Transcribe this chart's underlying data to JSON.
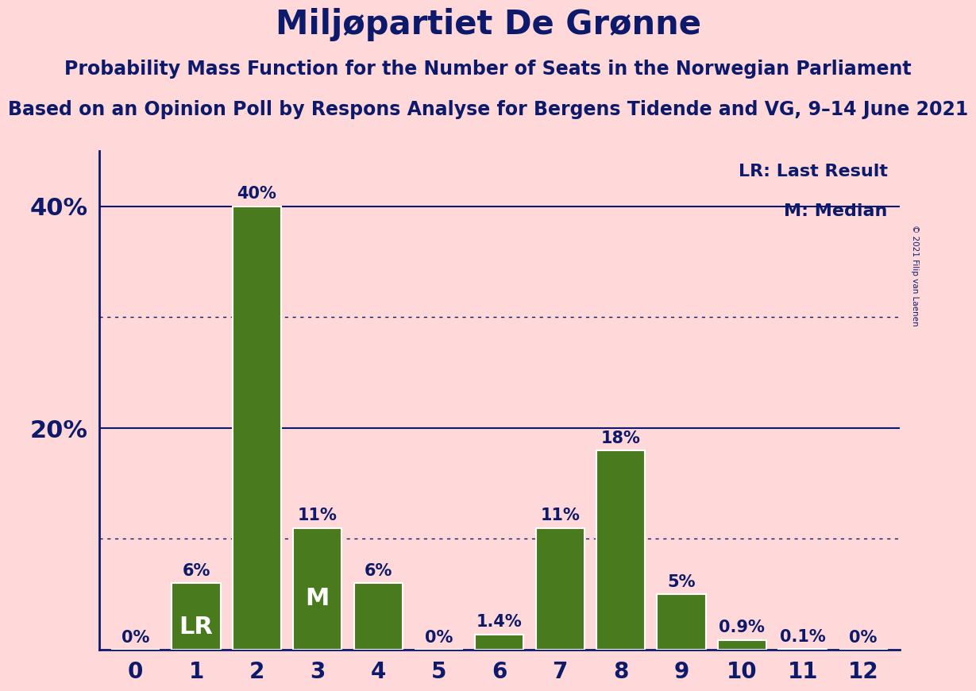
{
  "title": "Miljøpartiet De Grønne",
  "subtitle1": "Probability Mass Function for the Number of Seats in the Norwegian Parliament",
  "subtitle2": "Based on an Opinion Poll by Respons Analyse for Bergens Tidende and VG, 9–14 June 2021",
  "copyright": "© 2021 Filip van Laenen",
  "categories": [
    0,
    1,
    2,
    3,
    4,
    5,
    6,
    7,
    8,
    9,
    10,
    11,
    12
  ],
  "values": [
    0.0,
    6.0,
    40.0,
    11.0,
    6.0,
    0.0,
    1.4,
    11.0,
    18.0,
    5.0,
    0.9,
    0.1,
    0.0
  ],
  "bar_color": "#4a7a1e",
  "bar_edge_color": "#ffffff",
  "background_color": "#FFD9D9",
  "title_color": "#0d1a6b",
  "axis_color": "#0d1a6b",
  "grid_solid_color": "#0d1a6b",
  "grid_dot_color": "#0d1a6b",
  "label_color": "#0d1a6b",
  "bar_label_color": "#0d1a6b",
  "LR_bar": 1,
  "M_bar": 3,
  "marker_text_color": "#ffffff",
  "legend_LR": "LR: Last Result",
  "legend_M": "M: Median",
  "ylim": [
    0,
    45
  ],
  "solid_yticks": [
    20,
    40
  ],
  "dot_yticks": [
    10,
    30
  ],
  "bar_labels": [
    "0%",
    "6%",
    "40%",
    "11%",
    "6%",
    "0%",
    "1.4%",
    "11%",
    "18%",
    "5%",
    "0.9%",
    "0.1%",
    "0%"
  ],
  "title_fontsize": 30,
  "subtitle1_fontsize": 17,
  "subtitle2_fontsize": 17,
  "bar_label_fontsize": 15,
  "tick_fontsize": 20,
  "ytick_fontsize": 22,
  "legend_fontsize": 16,
  "marker_fontsize": 22,
  "copyright_fontsize": 7.5
}
